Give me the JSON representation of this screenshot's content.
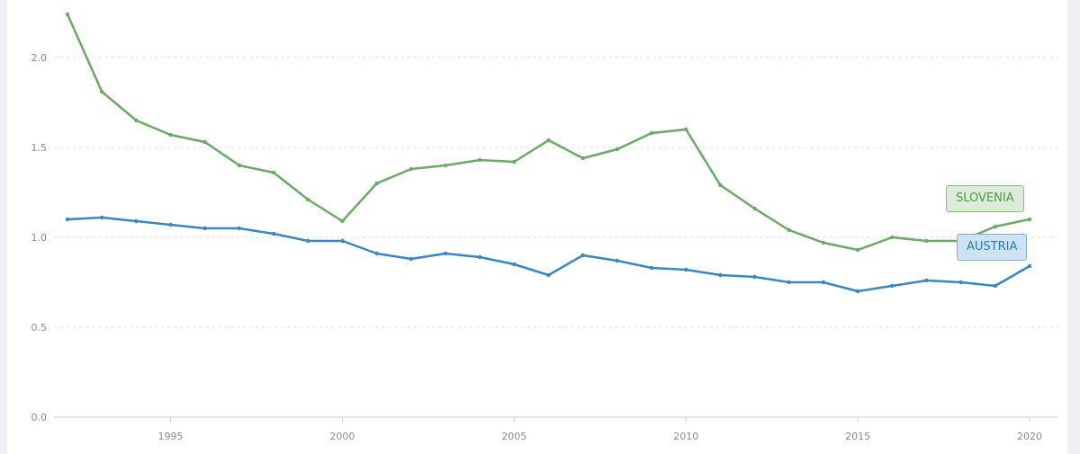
{
  "chart_data": {
    "type": "line",
    "x": [
      1992,
      1993,
      1994,
      1995,
      1996,
      1997,
      1998,
      1999,
      2000,
      2001,
      2002,
      2003,
      2004,
      2005,
      2006,
      2007,
      2008,
      2009,
      2010,
      2011,
      2012,
      2013,
      2014,
      2015,
      2016,
      2017,
      2018,
      2019,
      2020
    ],
    "xlim": [
      1992,
      2020
    ],
    "ylim": [
      0,
      2.25
    ],
    "xticks": [
      "1995",
      "2000",
      "2005",
      "2010",
      "2015",
      "2020"
    ],
    "yticks": [
      "0.0",
      "0.5",
      "1.0",
      "1.5",
      "2.0"
    ],
    "grid": "horizontal dashed",
    "legend": "labels at line ends, right",
    "series": [
      {
        "name": "SLOVENIA",
        "color": "#6aaa64",
        "values": [
          2.24,
          1.81,
          1.65,
          1.57,
          1.53,
          1.4,
          1.36,
          1.21,
          1.09,
          1.3,
          1.38,
          1.4,
          1.43,
          1.42,
          1.54,
          1.44,
          1.49,
          1.58,
          1.6,
          1.29,
          1.16,
          1.04,
          0.97,
          0.93,
          1.0,
          0.98,
          0.98,
          1.06,
          1.1
        ]
      },
      {
        "name": "AUSTRIA",
        "color": "#3a87bf",
        "values": [
          1.1,
          1.11,
          1.09,
          1.07,
          1.05,
          1.05,
          1.02,
          0.98,
          0.98,
          0.91,
          0.88,
          0.91,
          0.89,
          0.85,
          0.79,
          0.9,
          0.87,
          0.83,
          0.82,
          0.79,
          0.78,
          0.75,
          0.75,
          0.7,
          0.73,
          0.76,
          0.75,
          0.73,
          0.84
        ]
      }
    ]
  }
}
